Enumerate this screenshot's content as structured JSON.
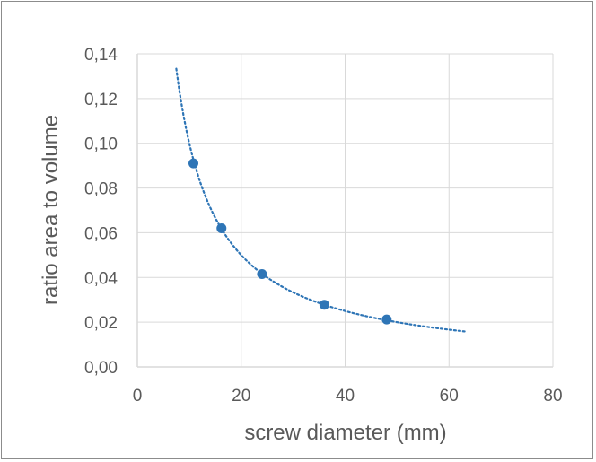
{
  "chart_data": {
    "type": "scatter",
    "xlabel": "screw diameter (mm)",
    "ylabel": "ratio area to volume",
    "xlim": [
      0,
      80
    ],
    "ylim": [
      0,
      0.14
    ],
    "x_ticks": [
      0,
      20,
      40,
      60,
      80
    ],
    "x_tick_labels": [
      "0",
      "20",
      "40",
      "60",
      "80"
    ],
    "y_ticks": [
      0,
      0.02,
      0.04,
      0.06,
      0.08,
      0.1,
      0.12,
      0.14
    ],
    "y_tick_labels": [
      "0,00",
      "0,02",
      "0,04",
      "0,06",
      "0,08",
      "0,10",
      "0,12",
      "0,14"
    ],
    "grid": true,
    "series": [
      {
        "color": "#2e75b6",
        "points": [
          {
            "x": 10.8,
            "y": 0.091
          },
          {
            "x": 16.2,
            "y": 0.062
          },
          {
            "x": 24.0,
            "y": 0.0415
          },
          {
            "x": 36.0,
            "y": 0.0278
          },
          {
            "x": 48.0,
            "y": 0.0212
          }
        ]
      }
    ],
    "trendline": {
      "type": "power",
      "color": "#2e75b6",
      "style": "dotted",
      "coefficient": 1.0,
      "exponent": -1.0,
      "x_range": [
        7.5,
        63
      ]
    }
  }
}
